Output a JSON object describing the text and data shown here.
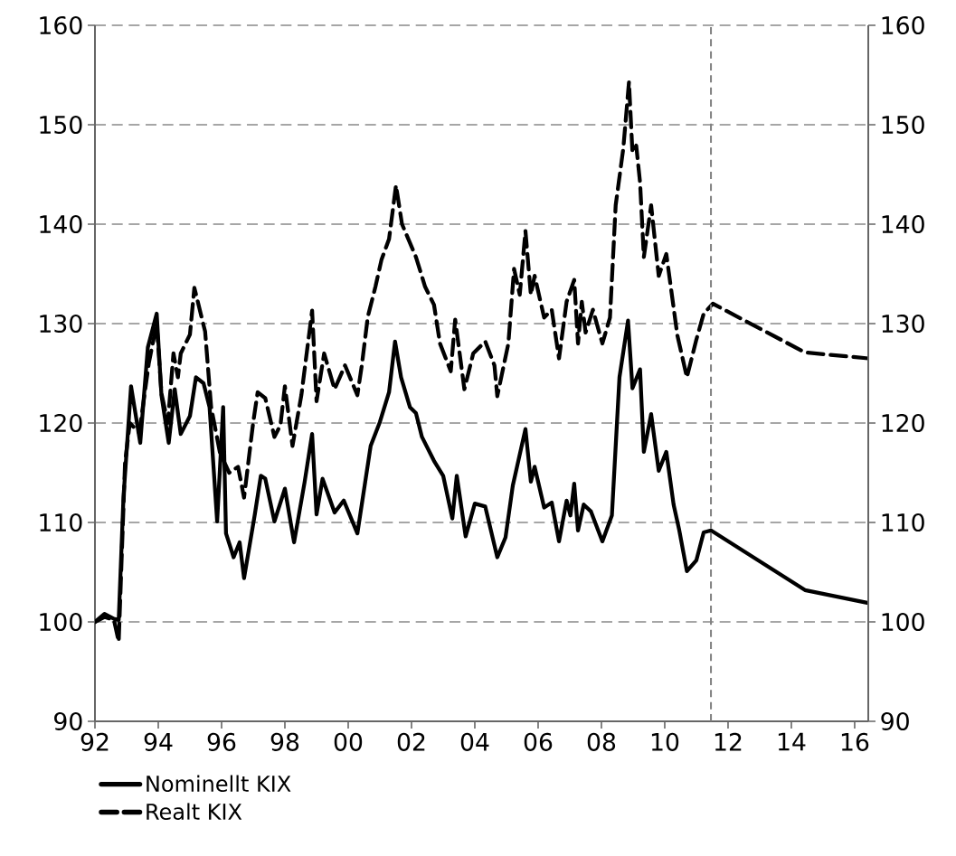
{
  "chart_data": {
    "type": "line",
    "series": [
      {
        "name": "Nominellt KIX",
        "color": "#000000",
        "line_style": "solid",
        "x": [
          1992.0,
          1992.3,
          1992.6,
          1992.75,
          1992.9,
          1993.14,
          1993.43,
          1993.67,
          1993.95,
          1994.1,
          1994.33,
          1994.52,
          1994.71,
          1995.0,
          1995.19,
          1995.43,
          1995.62,
          1995.86,
          1996.05,
          1996.14,
          1996.38,
          1996.57,
          1996.71,
          1997.05,
          1997.24,
          1997.38,
          1997.67,
          1998.0,
          1998.29,
          1998.62,
          1998.86,
          1999.0,
          1999.19,
          1999.57,
          1999.86,
          2000.29,
          2000.71,
          2001.0,
          2001.29,
          2001.48,
          2001.67,
          2001.95,
          2002.14,
          2002.33,
          2002.71,
          2003.0,
          2003.29,
          2003.43,
          2003.71,
          2004.0,
          2004.33,
          2004.71,
          2004.97,
          2005.2,
          2005.6,
          2005.77,
          2005.89,
          2006.19,
          2006.43,
          2006.66,
          2006.9,
          2007.02,
          2007.14,
          2007.26,
          2007.44,
          2007.67,
          2008.03,
          2008.33,
          2008.57,
          2008.84,
          2008.98,
          2009.22,
          2009.34,
          2009.57,
          2009.81,
          2010.05,
          2010.28,
          2010.46,
          2010.7,
          2011.0,
          2011.23,
          2011.46,
          2014.43,
          2016.43
        ],
        "values": [
          100.0,
          100.8,
          100.3,
          100.2,
          112.5,
          123.7,
          118,
          127.6,
          131,
          122.8,
          118,
          123.4,
          118.9,
          120.7,
          124.6,
          124,
          121.6,
          110.1,
          121.6,
          108.9,
          106.5,
          108,
          104.4,
          110.8,
          114.7,
          114.4,
          110.1,
          113.4,
          108,
          114,
          118.9,
          110.8,
          114.4,
          111,
          112.2,
          108.9,
          117.7,
          120.1,
          123.1,
          128.2,
          124.6,
          121.6,
          121,
          118.6,
          116.2,
          114.7,
          110.4,
          114.7,
          108.6,
          111.9,
          111.6,
          106.5,
          108.5,
          113.7,
          119.4,
          114.1,
          115.6,
          111.5,
          112,
          108.1,
          112.2,
          110.7,
          113.9,
          109.2,
          111.8,
          111.1,
          108.1,
          110.7,
          124.6,
          130.3,
          123.5,
          125.4,
          117.1,
          120.9,
          115.2,
          117.1,
          111.8,
          109.2,
          105.1,
          106.2,
          109,
          109.2,
          103.2,
          101.9
        ]
      },
      {
        "name": "Realt KIX",
        "color": "#000000",
        "line_style": "dashed",
        "x": [
          1992.0,
          1992.3,
          1992.6,
          1992.75,
          1992.95,
          1993.1,
          1993.4,
          1993.7,
          1993.95,
          1994.1,
          1994.3,
          1994.48,
          1994.62,
          1994.71,
          1995.0,
          1995.14,
          1995.48,
          1995.67,
          1995.95,
          1996.24,
          1996.52,
          1996.71,
          1997.0,
          1997.14,
          1997.38,
          1997.67,
          1997.86,
          1998.0,
          1998.24,
          1998.52,
          1998.86,
          1999.0,
          1999.24,
          1999.57,
          1999.9,
          2000.29,
          2000.43,
          2000.62,
          2000.86,
          2001.05,
          2001.29,
          2001.51,
          2001.7,
          2002.14,
          2002.43,
          2002.71,
          2002.9,
          2003.24,
          2003.38,
          2003.67,
          2003.95,
          2004.33,
          2004.62,
          2004.71,
          2005.06,
          2005.24,
          2005.42,
          2005.6,
          2005.77,
          2005.89,
          2006.19,
          2006.43,
          2006.66,
          2006.9,
          2007.14,
          2007.26,
          2007.38,
          2007.5,
          2007.73,
          2008.03,
          2008.27,
          2008.45,
          2008.69,
          2008.87,
          2008.98,
          2009.1,
          2009.22,
          2009.34,
          2009.57,
          2009.81,
          2010.05,
          2010.4,
          2010.7,
          2011.0,
          2011.23,
          2011.52,
          2014.43,
          2016.43
        ],
        "values": [
          100.0,
          100.5,
          100.2,
          98,
          116,
          120,
          119,
          126,
          130,
          123,
          120,
          127,
          124.6,
          127,
          128.9,
          133.6,
          129.2,
          121.6,
          117,
          115,
          115.6,
          112.5,
          120.1,
          123.1,
          122.5,
          118.6,
          119.8,
          123.7,
          117.7,
          122.8,
          131.3,
          122.2,
          127,
          123.4,
          125.8,
          122.8,
          125.8,
          130.7,
          133.7,
          136.4,
          138.5,
          143.9,
          140,
          136.7,
          133.7,
          131.9,
          128,
          125.2,
          130.4,
          123.4,
          127,
          128.2,
          125.8,
          122.7,
          128,
          135.5,
          132.9,
          139.3,
          132.9,
          134.8,
          130.6,
          131.4,
          126.5,
          132.2,
          134.4,
          128,
          132.2,
          129.1,
          131.4,
          128,
          130.6,
          141.9,
          147.6,
          154.3,
          147.2,
          147.9,
          144.2,
          136.7,
          141.9,
          134.8,
          137,
          128.8,
          124.6,
          128.4,
          131,
          132,
          127.1,
          126.5
        ]
      }
    ],
    "xlim": [
      1992,
      2016.43
    ],
    "xticks": [
      {
        "value": 1992,
        "label": "92"
      },
      {
        "value": 1994,
        "label": "94"
      },
      {
        "value": 1996,
        "label": "96"
      },
      {
        "value": 1998,
        "label": "98"
      },
      {
        "value": 2000,
        "label": "00"
      },
      {
        "value": 2002,
        "label": "02"
      },
      {
        "value": 2004,
        "label": "04"
      },
      {
        "value": 2006,
        "label": "06"
      },
      {
        "value": 2008,
        "label": "08"
      },
      {
        "value": 2010,
        "label": "10"
      },
      {
        "value": 2012,
        "label": "12"
      },
      {
        "value": 2014,
        "label": "14"
      },
      {
        "value": 2016,
        "label": "16"
      }
    ],
    "ylim": [
      90,
      160
    ],
    "yticks": [
      90,
      100,
      110,
      120,
      130,
      140,
      150,
      160
    ],
    "y2lim": [
      90,
      160
    ],
    "y2ticks": [
      90,
      100,
      110,
      120,
      130,
      140,
      150,
      160
    ],
    "ref_lines": [
      {
        "axis": "x",
        "value": 2011.46,
        "color": "#808080",
        "line_style": "dashed"
      }
    ],
    "grid": "y",
    "legend": "bottom left"
  }
}
